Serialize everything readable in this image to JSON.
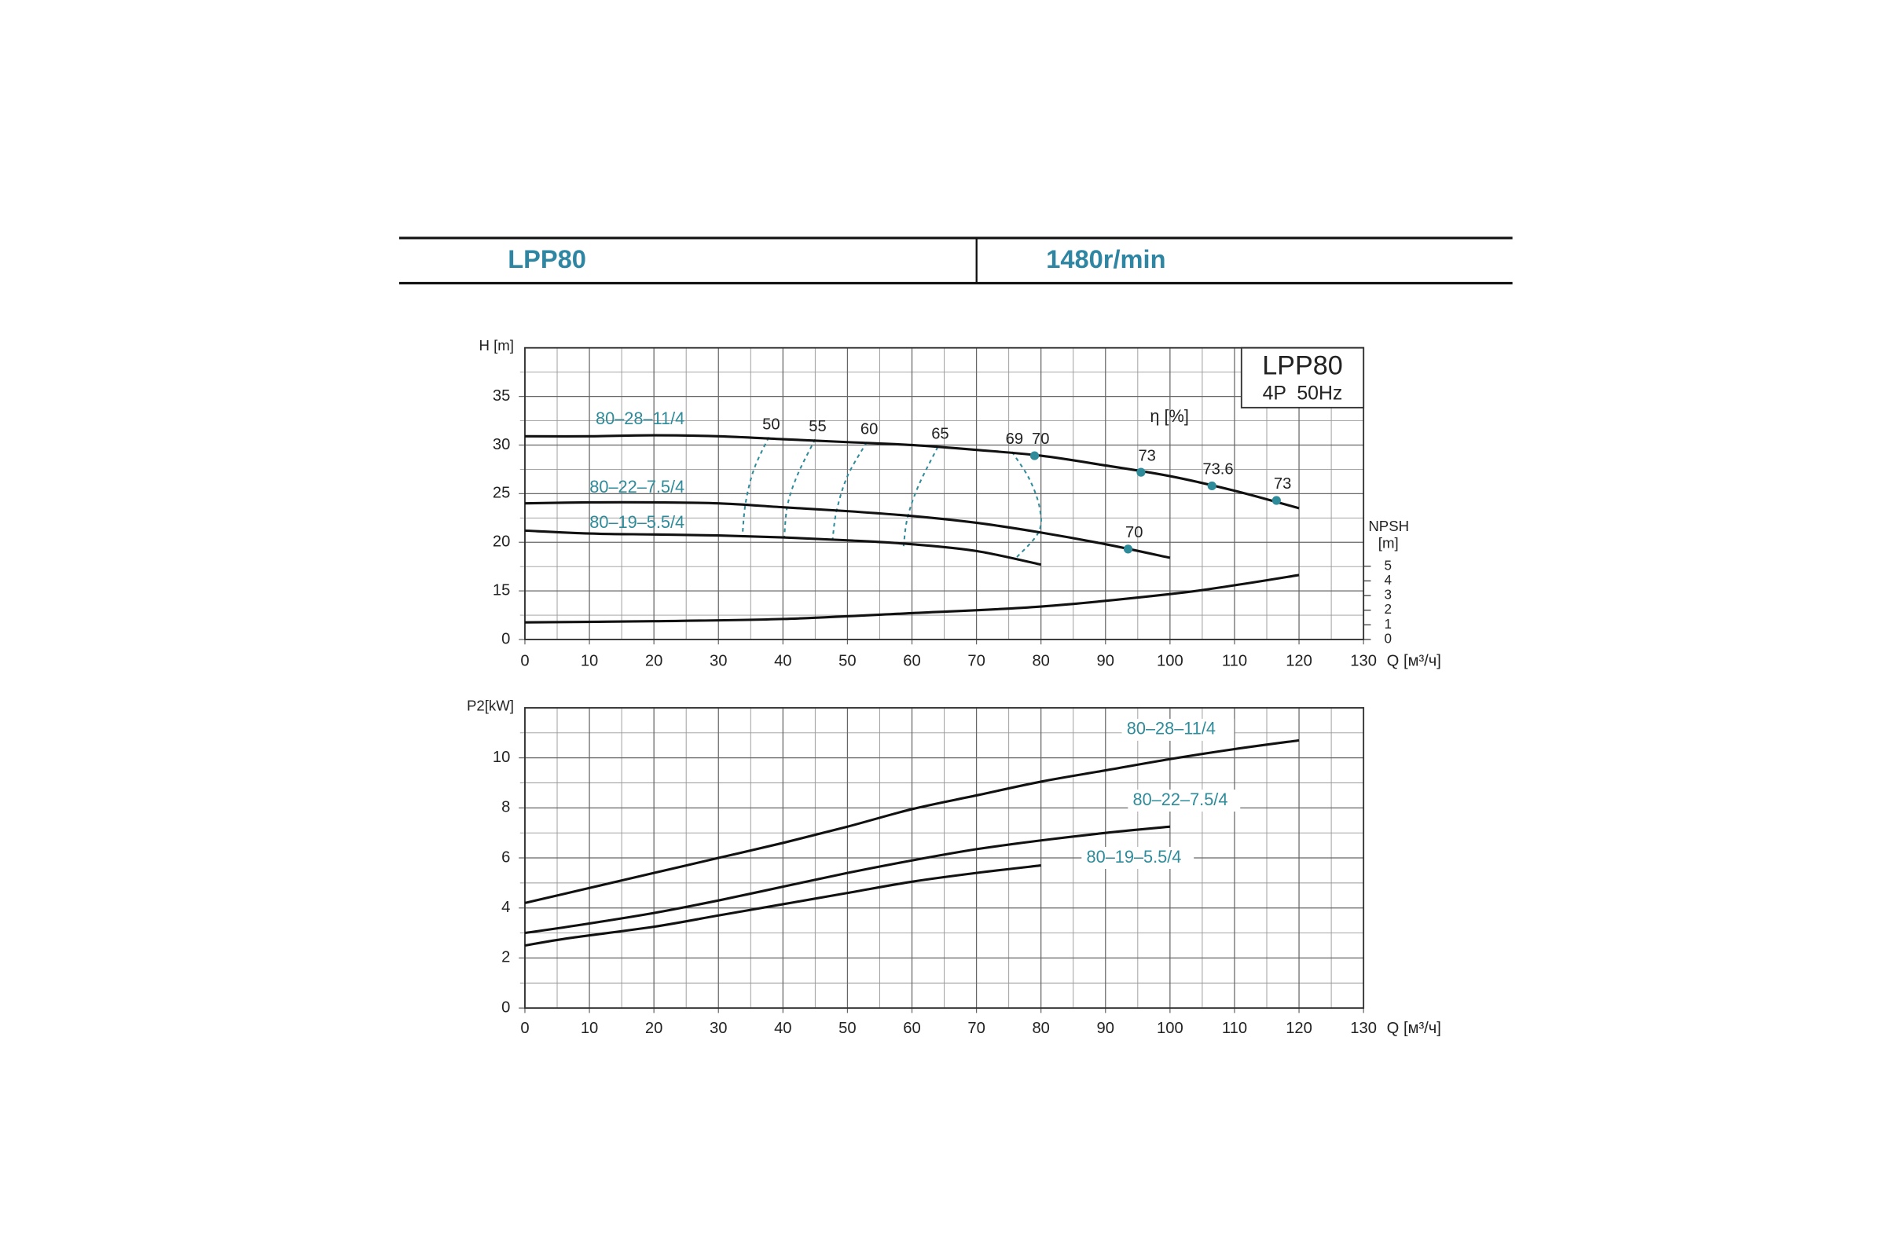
{
  "header": {
    "model": "LPP80",
    "speed": "1480r/min"
  },
  "chart_data": [
    {
      "type": "line",
      "badge": {
        "title": "LPP80",
        "subtitle": "4P  50Hz"
      },
      "ylabel": "H [m]",
      "xlabel": "Q [м³/ч]",
      "y2label": [
        "NPSH",
        "[m]"
      ],
      "xlim": [
        0,
        130
      ],
      "xticks": [
        0,
        10,
        20,
        30,
        40,
        50,
        60,
        70,
        80,
        90,
        100,
        110,
        120,
        130
      ],
      "xminor_ticks": [
        5,
        15,
        25,
        35,
        45,
        55,
        65,
        75,
        85,
        95,
        105,
        115,
        125
      ],
      "ylim": [
        0,
        40
      ],
      "yticks": [
        0,
        15,
        20,
        25,
        30,
        35
      ],
      "yminor_ticks": [
        7.5,
        17.5,
        22.5,
        27.5,
        32.5,
        37.5
      ],
      "y_axis_break": true,
      "y2lim": [
        0,
        5
      ],
      "y2ticks": [
        0,
        1,
        2,
        3,
        4,
        5
      ],
      "grid": true,
      "series": [
        {
          "name": "80–28–11/4",
          "color": "#111111",
          "x": [
            0,
            10,
            20,
            30,
            40,
            50,
            60,
            70,
            80,
            90,
            100,
            110,
            120
          ],
          "values": [
            30.9,
            30.9,
            31.0,
            30.9,
            30.6,
            30.3,
            30.0,
            29.5,
            28.9,
            27.9,
            26.8,
            25.3,
            23.5
          ]
        },
        {
          "name": "80–22–7.5/4",
          "color": "#111111",
          "x": [
            0,
            10,
            20,
            30,
            40,
            50,
            60,
            70,
            80,
            90,
            100
          ],
          "values": [
            24.0,
            24.1,
            24.1,
            24.0,
            23.6,
            23.2,
            22.7,
            22.0,
            21.0,
            19.8,
            18.4
          ]
        },
        {
          "name": "80–19–5.5/4",
          "color": "#111111",
          "x": [
            0,
            10,
            20,
            30,
            40,
            50,
            60,
            70,
            80
          ],
          "values": [
            21.2,
            20.9,
            20.8,
            20.7,
            20.5,
            20.2,
            19.8,
            19.1,
            17.7
          ]
        },
        {
          "axis": "y2",
          "color": "#111111",
          "x": [
            0,
            20,
            40,
            60,
            80,
            100,
            110,
            120
          ],
          "values": [
            1.17,
            1.25,
            1.4,
            1.8,
            2.25,
            3.1,
            3.7,
            4.4
          ]
        }
      ],
      "eta_label": "η [%]",
      "eta_color": "#2e8b9a",
      "eta_points": {
        "x": [
          79,
          95.5,
          106.5,
          116.5,
          93.5
        ],
        "y": [
          28.9,
          27.2,
          25.8,
          24.3,
          19.3
        ],
        "eta": [
          70,
          73,
          73.6,
          73,
          70
        ]
      },
      "eta_curves": [
        {
          "eta": 50,
          "x": [
            37.8,
            35.5,
            34.2,
            33.7
          ],
          "y": [
            30.8,
            27.5,
            24.0,
            20.5
          ]
        },
        {
          "eta": 55,
          "x": [
            45.0,
            42.3,
            40.7,
            40.2
          ],
          "y": [
            30.6,
            27.0,
            23.8,
            20.4
          ]
        },
        {
          "eta": 60,
          "x": [
            53.0,
            50.0,
            48.3,
            47.7
          ],
          "y": [
            30.3,
            26.8,
            23.2,
            20.3
          ]
        },
        {
          "eta": 65,
          "x": [
            64.0,
            61.0,
            59.3,
            58.7
          ],
          "y": [
            29.8,
            25.8,
            22.5,
            19.6
          ]
        },
        {
          "eta": 69,
          "x": [
            75.5,
            78.2,
            79.8,
            79.6,
            76.0
          ],
          "y": [
            29.3,
            26.5,
            23.5,
            21.0,
            18.3
          ]
        }
      ]
    },
    {
      "type": "line",
      "ylabel": "P2[kW]",
      "xlabel": "Q [м³/ч]",
      "xlim": [
        0,
        130
      ],
      "xticks": [
        0,
        10,
        20,
        30,
        40,
        50,
        60,
        70,
        80,
        90,
        100,
        110,
        120,
        130
      ],
      "xminor_ticks": [
        5,
        15,
        25,
        35,
        45,
        55,
        65,
        75,
        85,
        95,
        105,
        115,
        125
      ],
      "ylim": [
        0,
        12
      ],
      "yticks": [
        0,
        2,
        4,
        6,
        8,
        10
      ],
      "yminor_ticks": [
        1,
        3,
        5,
        7,
        9,
        11
      ],
      "grid": true,
      "series": [
        {
          "name": "80–28–11/4",
          "color": "#111111",
          "x": [
            0,
            10,
            20,
            30,
            40,
            50,
            60,
            70,
            80,
            90,
            100,
            110,
            120
          ],
          "values": [
            4.2,
            4.8,
            5.4,
            6.0,
            6.6,
            7.25,
            7.95,
            8.5,
            9.05,
            9.5,
            9.95,
            10.35,
            10.7
          ]
        },
        {
          "name": "80–22–7.5/4",
          "color": "#111111",
          "x": [
            0,
            8,
            20,
            30,
            40,
            50,
            60,
            70,
            80,
            90,
            100
          ],
          "values": [
            3.0,
            3.3,
            3.8,
            4.3,
            4.85,
            5.4,
            5.9,
            6.35,
            6.7,
            7.0,
            7.25
          ]
        },
        {
          "name": "80–19–5.5/4",
          "color": "#111111",
          "x": [
            0,
            7,
            20,
            30,
            40,
            50,
            60,
            70,
            80
          ],
          "values": [
            2.5,
            2.8,
            3.25,
            3.7,
            4.15,
            4.6,
            5.05,
            5.4,
            5.7
          ]
        }
      ]
    }
  ]
}
